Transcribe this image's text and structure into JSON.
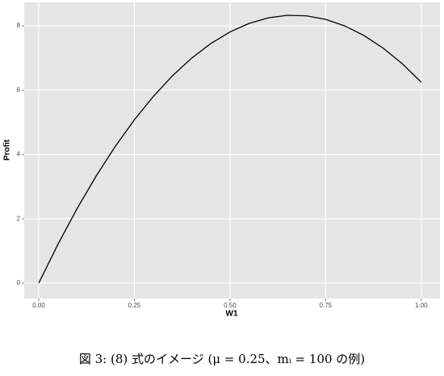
{
  "chart_data": {
    "type": "line",
    "x_label": "W1",
    "y_label": "Profit",
    "caption": "図 3: (8) 式のイメージ (μ = 0.25、mᵢ = 100 の例)",
    "x": [
      0,
      0.05,
      0.1,
      0.15,
      0.2,
      0.25,
      0.3,
      0.35,
      0.4,
      0.45,
      0.5,
      0.55,
      0.6,
      0.65,
      0.7,
      0.75,
      0.8,
      0.85,
      0.9,
      0.95,
      1.0
    ],
    "series": [
      {
        "name": "Profit",
        "color": "#000000",
        "values": [
          0,
          1.203,
          2.3125,
          3.328,
          4.25,
          5.078,
          5.8125,
          6.453,
          7,
          7.453,
          7.8125,
          8.078,
          8.25,
          8.328,
          8.3125,
          8.203,
          8,
          7.703,
          7.3125,
          6.828,
          6.25
        ]
      }
    ],
    "xlim": [
      -0.038,
      1.049
    ],
    "ylim": [
      -0.48,
      8.73
    ],
    "xticks": [
      {
        "value": 0,
        "label": "0.00"
      },
      {
        "value": 0.25,
        "label": "0.25"
      },
      {
        "value": 0.5,
        "label": "0.50"
      },
      {
        "value": 0.75,
        "label": "0.75"
      },
      {
        "value": 1,
        "label": "1.00"
      }
    ],
    "yticks": [
      0,
      2,
      4,
      6,
      8
    ],
    "grid": true
  }
}
